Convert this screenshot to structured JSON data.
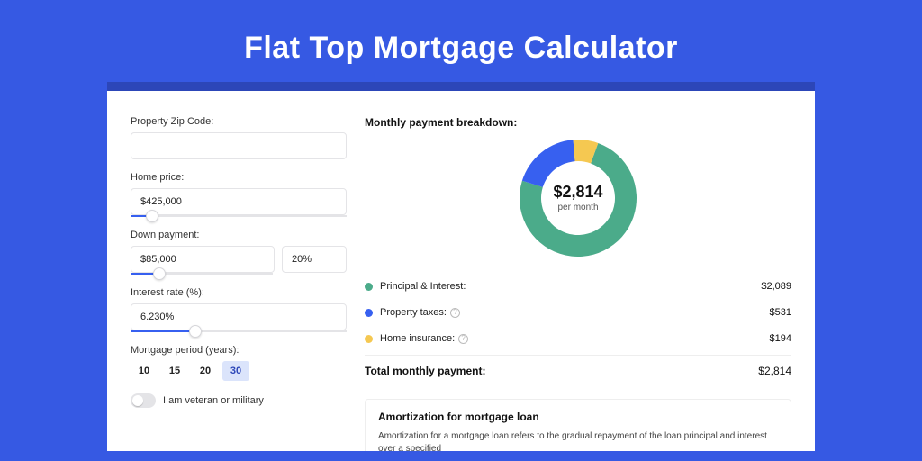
{
  "page": {
    "title": "Flat Top Mortgage Calculator",
    "background_color": "#3659e3",
    "banner_strip_color": "#2c46b8",
    "card_background": "#ffffff"
  },
  "form": {
    "zip": {
      "label": "Property Zip Code:",
      "value": ""
    },
    "home_price": {
      "label": "Home price:",
      "value": "$425,000",
      "slider_percent": 10
    },
    "down_payment": {
      "label": "Down payment:",
      "value": "$85,000",
      "percent_value": "20%",
      "slider_percent": 20
    },
    "interest_rate": {
      "label": "Interest rate (%):",
      "value": "6.230%",
      "slider_percent": 30
    },
    "mortgage_period": {
      "label": "Mortgage period (years):",
      "options": [
        "10",
        "15",
        "20",
        "30"
      ],
      "selected": "30"
    },
    "veteran_toggle": {
      "label": "I am veteran or military",
      "on": false
    }
  },
  "breakdown": {
    "title": "Monthly payment breakdown:",
    "center_value": "$2,814",
    "center_sub": "per month",
    "donut": {
      "size": 130,
      "thickness": 24,
      "slices": [
        {
          "color": "#4bab8a",
          "fraction": 0.742
        },
        {
          "color": "#3760f0",
          "fraction": 0.189
        },
        {
          "color": "#f5c851",
          "fraction": 0.069
        }
      ]
    },
    "items": [
      {
        "color": "#4bab8a",
        "label": "Principal & Interest:",
        "value": "$2,089",
        "info": false
      },
      {
        "color": "#3760f0",
        "label": "Property taxes:",
        "value": "$531",
        "info": true
      },
      {
        "color": "#f5c851",
        "label": "Home insurance:",
        "value": "$194",
        "info": true
      }
    ],
    "total_label": "Total monthly payment:",
    "total_value": "$2,814"
  },
  "amortization": {
    "title": "Amortization for mortgage loan",
    "body": "Amortization for a mortgage loan refers to the gradual repayment of the loan principal and interest over a specified"
  }
}
